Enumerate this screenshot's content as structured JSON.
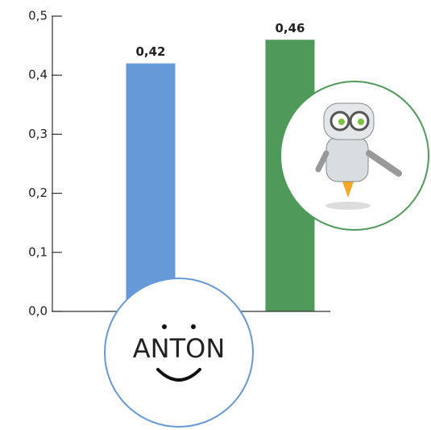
{
  "chart_data": {
    "type": "bar",
    "categories": [
      null,
      null
    ],
    "series": [
      {
        "values": [
          0.42,
          0.46
        ],
        "value_labels": [
          "0,42",
          "0,46"
        ],
        "colors": [
          "#6699d8",
          "#4f9a5a"
        ]
      }
    ],
    "ylim": [
      0,
      0.5
    ],
    "yticks": [
      {
        "value": 0,
        "label": "0,0"
      },
      {
        "value": 0.1,
        "label": "0,1"
      },
      {
        "value": 0.2,
        "label": "0,2"
      },
      {
        "value": 0.3,
        "label": "0,3"
      },
      {
        "value": 0.4,
        "label": "0,4"
      },
      {
        "value": 0.5,
        "label": "0,5"
      }
    ],
    "logo_text": "ANTON"
  }
}
